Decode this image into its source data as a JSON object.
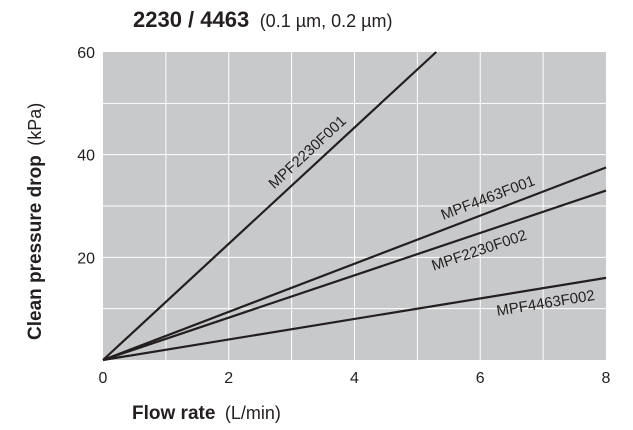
{
  "chart_data": {
    "type": "line",
    "title": "2230 / 4463",
    "subtitle": "(0.1 µm, 0.2 µm)",
    "xlabel": "Flow rate",
    "xlabel_unit": "(L/min)",
    "ylabel": "Clean pressure drop",
    "ylabel_unit": "(kPa)",
    "xlim": [
      0,
      8
    ],
    "ylim": [
      0,
      60
    ],
    "x_ticks": [
      0,
      2,
      4,
      6,
      8
    ],
    "y_ticks": [
      20,
      40,
      60
    ],
    "grid": true,
    "background_color": "#c8c9cb",
    "grid_color": "#ffffff",
    "line_color": "#231f20",
    "series": [
      {
        "name": "MPF2230F001",
        "x": [
          0,
          5.3
        ],
        "y": [
          0,
          60
        ]
      },
      {
        "name": "MPF4463F001",
        "x": [
          0,
          8
        ],
        "y": [
          0,
          37.5
        ]
      },
      {
        "name": "MPF2230F002",
        "x": [
          0,
          8
        ],
        "y": [
          0,
          33
        ]
      },
      {
        "name": "MPF4463F002",
        "x": [
          0,
          8
        ],
        "y": [
          0,
          16
        ]
      }
    ]
  }
}
